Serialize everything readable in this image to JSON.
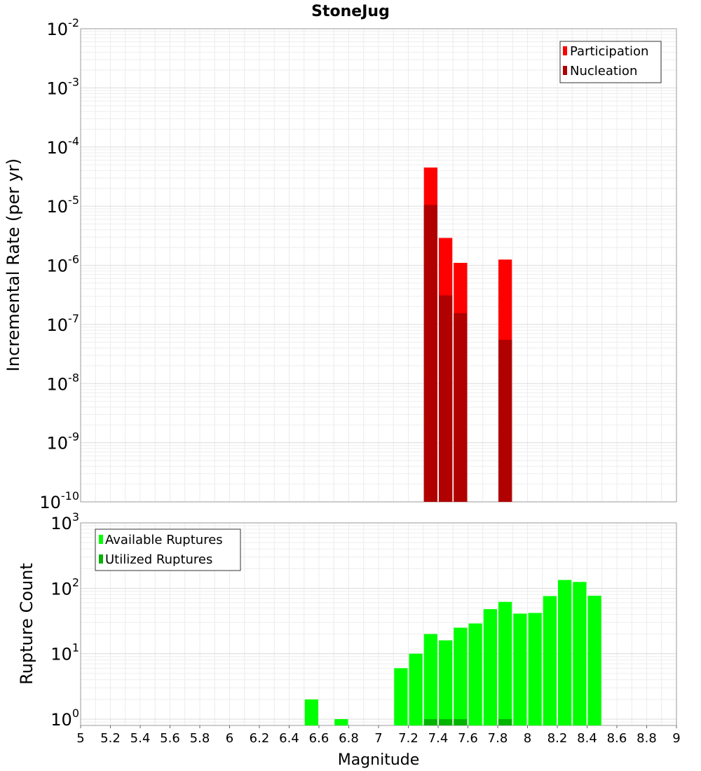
{
  "chart_data": [
    {
      "type": "bar",
      "title": "StoneJug",
      "xlabel": "",
      "ylabel": "Incremental Rate (per yr)",
      "yscale": "log",
      "ylim": [
        1e-10,
        0.01
      ],
      "xlim": [
        5,
        9
      ],
      "grid": true,
      "legend_position": "top-right",
      "bar_width": 0.1,
      "ytick_labels": [
        {
          "base": "10",
          "exp": "-10",
          "value": 1e-10
        },
        {
          "base": "10",
          "exp": "-9",
          "value": 1e-09
        },
        {
          "base": "10",
          "exp": "-8",
          "value": 1e-08
        },
        {
          "base": "10",
          "exp": "-7",
          "value": 1e-07
        },
        {
          "base": "10",
          "exp": "-6",
          "value": 1e-06
        },
        {
          "base": "10",
          "exp": "-5",
          "value": 1e-05
        },
        {
          "base": "10",
          "exp": "-4",
          "value": 0.0001
        },
        {
          "base": "10",
          "exp": "-3",
          "value": 0.001
        },
        {
          "base": "10",
          "exp": "-2",
          "value": 0.01
        }
      ],
      "series": [
        {
          "name": "Participation",
          "color": "#ff0000",
          "x": [
            7.35,
            7.45,
            7.55,
            7.85
          ],
          "values": [
            4.5e-05,
            2.9e-06,
            1.1e-06,
            1.25e-06
          ]
        },
        {
          "name": "Nucleation",
          "color": "#b00000",
          "x": [
            7.35,
            7.45,
            7.55,
            7.85
          ],
          "values": [
            1.05e-05,
            3.1e-07,
            1.55e-07,
            5.5e-08
          ]
        }
      ]
    },
    {
      "type": "bar",
      "title": "",
      "xlabel": "Magnitude",
      "ylabel": "Rupture Count",
      "yscale": "log",
      "ylim": [
        0.8,
        1000
      ],
      "xlim": [
        5,
        9
      ],
      "grid": true,
      "legend_position": "top-left",
      "bar_width": 0.1,
      "xtick_labels": [
        "5",
        "5.2",
        "5.4",
        "5.6",
        "5.8",
        "6",
        "6.2",
        "6.4",
        "6.6",
        "6.8",
        "7",
        "7.2",
        "7.4",
        "7.6",
        "7.8",
        "8",
        "8.2",
        "8.4",
        "8.6",
        "8.8",
        "9"
      ],
      "ytick_labels": [
        {
          "base": "10",
          "exp": "0",
          "value": 1
        },
        {
          "base": "10",
          "exp": "1",
          "value": 10
        },
        {
          "base": "10",
          "exp": "2",
          "value": 100
        },
        {
          "base": "10",
          "exp": "3",
          "value": 1000
        }
      ],
      "series": [
        {
          "name": "Available Ruptures",
          "color": "#00ff00",
          "x": [
            6.55,
            6.75,
            7.15,
            7.25,
            7.35,
            7.45,
            7.55,
            7.65,
            7.75,
            7.85,
            7.95,
            8.05,
            8.15,
            8.25,
            8.35,
            8.45
          ],
          "values": [
            2,
            1,
            6,
            10,
            20,
            16,
            25,
            29,
            48,
            62,
            41,
            42,
            76,
            134,
            125,
            77
          ]
        },
        {
          "name": "Utilized Ruptures",
          "color": "#00b400",
          "x": [
            7.35,
            7.45,
            7.55,
            7.85
          ],
          "values": [
            1,
            1,
            1,
            1
          ]
        }
      ]
    }
  ]
}
